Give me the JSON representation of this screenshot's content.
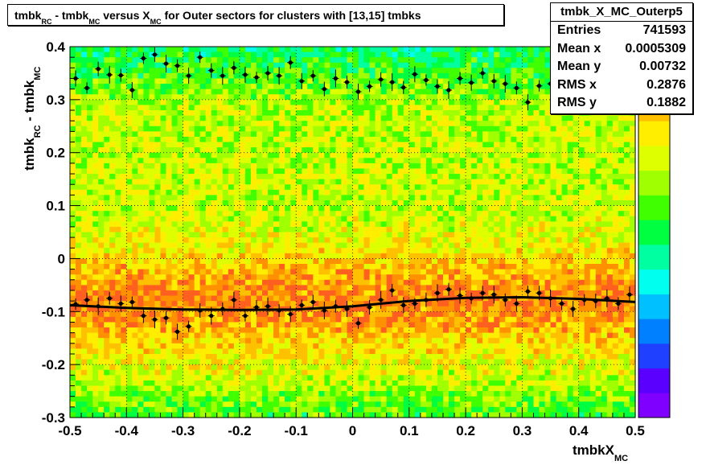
{
  "chart_data": {
    "type": "heatmap",
    "title": {
      "parts": [
        "tmbk",
        "RC",
        " - tmbk",
        "MC",
        " versus X",
        "MC",
        " for Outer sectors for clusters with [13,15] tmbks"
      ]
    },
    "xlabel": {
      "main": "tmbkX",
      "sub": "MC"
    },
    "ylabel": {
      "main1": "tmbk",
      "sub1": "RC",
      "main2": " - tmbk",
      "sub2": "MC"
    },
    "xlim": [
      -0.5,
      0.5
    ],
    "ylim": [
      -0.3,
      0.4
    ],
    "x_ticks": [
      "-0.5",
      "-0.4",
      "-0.3",
      "-0.2",
      "-0.1",
      "0",
      "0.1",
      "0.2",
      "0.3",
      "0.4",
      "0.5"
    ],
    "y_ticks": [
      "-0.3",
      "-0.2",
      "-0.1",
      "0",
      "0.1",
      "0.2",
      "0.3",
      "0.4"
    ],
    "grid": true,
    "palette": [
      "#7f00ff",
      "#5a00ff",
      "#2040ff",
      "#0080ff",
      "#00c0ff",
      "#00ffee",
      "#00ffa0",
      "#00ff40",
      "#40ff00",
      "#a0ff00",
      "#ddff00",
      "#ffee00",
      "#ffc000",
      "#ff9000",
      "#ff6020"
    ],
    "stats": {
      "name": "tmbk_X_MC_Outerp5",
      "rows": [
        {
          "label": "Entries",
          "value": "741593"
        },
        {
          "label": "Mean x",
          "value": "0.0005309"
        },
        {
          "label": "Mean y",
          "value": "0.00732"
        },
        {
          "label": "RMS x",
          "value": "0.2876"
        },
        {
          "label": "RMS y",
          "value": "0.1882"
        }
      ]
    },
    "series": [
      {
        "x": [
          -0.49,
          -0.47,
          -0.45,
          -0.43,
          -0.41,
          -0.39,
          -0.37,
          -0.35,
          -0.33,
          -0.31,
          -0.29,
          -0.27,
          -0.25,
          -0.23,
          -0.21,
          -0.19,
          -0.17,
          -0.15,
          -0.13,
          -0.11,
          -0.09,
          -0.07,
          -0.05,
          -0.03,
          -0.01,
          0.01,
          0.03,
          0.05,
          0.07,
          0.09,
          0.11,
          0.13,
          0.15,
          0.17,
          0.19,
          0.21,
          0.23,
          0.25,
          0.27,
          0.29,
          0.31,
          0.33,
          0.35,
          0.37,
          0.39,
          0.41,
          0.43,
          0.45,
          0.47,
          0.49
        ],
        "y": [
          -0.086,
          -0.078,
          -0.09,
          -0.075,
          -0.085,
          -0.082,
          -0.108,
          -0.115,
          -0.112,
          -0.138,
          -0.128,
          -0.098,
          -0.108,
          -0.095,
          -0.078,
          -0.108,
          -0.092,
          -0.09,
          -0.098,
          -0.105,
          -0.088,
          -0.082,
          -0.098,
          -0.09,
          -0.095,
          -0.122,
          -0.092,
          -0.078,
          -0.06,
          -0.088,
          -0.085,
          -0.078,
          -0.065,
          -0.058,
          -0.07,
          -0.075,
          -0.065,
          -0.068,
          -0.078,
          -0.085,
          -0.062,
          -0.065,
          -0.075,
          -0.085,
          -0.095,
          -0.078,
          -0.08,
          -0.075,
          -0.085,
          -0.068
        ]
      },
      {
        "x": [
          -0.49,
          -0.47,
          -0.45,
          -0.43,
          -0.41,
          -0.39,
          -0.37,
          -0.35,
          -0.33,
          -0.31,
          -0.29,
          -0.27,
          -0.25,
          -0.23,
          -0.21,
          -0.19,
          -0.17,
          -0.15,
          -0.13,
          -0.11,
          -0.09,
          -0.07,
          -0.05,
          -0.03,
          -0.01,
          0.01,
          0.03,
          0.05,
          0.07,
          0.09,
          0.11,
          0.13,
          0.15,
          0.17,
          0.19,
          0.21,
          0.23,
          0.25,
          0.27,
          0.29,
          0.31,
          0.33,
          0.35,
          0.37,
          0.39,
          0.41,
          0.43,
          0.45,
          0.47,
          0.49
        ],
        "y": [
          0.34,
          0.322,
          0.358,
          0.347,
          0.346,
          0.318,
          0.378,
          0.385,
          0.368,
          0.364,
          0.345,
          0.38,
          0.355,
          0.345,
          0.36,
          0.347,
          0.342,
          0.35,
          0.345,
          0.37,
          0.335,
          0.345,
          0.32,
          0.34,
          0.333,
          0.315,
          0.325,
          0.338,
          0.333,
          0.323,
          0.348,
          0.337,
          0.325,
          0.318,
          0.34,
          0.332,
          0.35,
          0.335,
          0.33,
          0.322,
          0.295,
          0.326,
          0.33,
          0.322,
          0.33,
          0.35,
          0.36,
          0.368,
          0.375,
          0.38
        ]
      }
    ],
    "profile_curve": {
      "x": [
        -0.5,
        -0.4,
        -0.3,
        -0.2,
        -0.1,
        0.0,
        0.1,
        0.2,
        0.3,
        0.4,
        0.5
      ],
      "y": [
        -0.088,
        -0.093,
        -0.096,
        -0.097,
        -0.096,
        -0.09,
        -0.08,
        -0.074,
        -0.073,
        -0.076,
        -0.082
      ]
    }
  }
}
